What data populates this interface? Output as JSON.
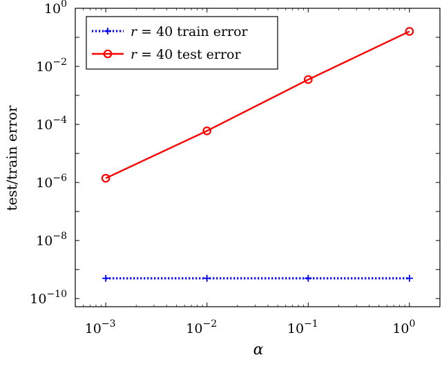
{
  "chart_data": {
    "type": "line",
    "xscale": "log",
    "yscale": "log",
    "xlabel": "α",
    "ylabel": "test/train error",
    "xlim": [
      0.0005,
      2
    ],
    "ylim": [
      1e-10,
      1
    ],
    "legend_position": "top-left",
    "grid": false,
    "x": [
      0.001,
      0.01,
      0.1,
      1
    ],
    "x_ticks": [
      {
        "value": 0.001,
        "base": "10",
        "exp": "−3"
      },
      {
        "value": 0.01,
        "base": "10",
        "exp": "−2"
      },
      {
        "value": 0.1,
        "base": "10",
        "exp": "−1"
      },
      {
        "value": 1,
        "base": "10",
        "exp": "0"
      }
    ],
    "y_ticks": [
      {
        "value": 1e-10,
        "base": "10",
        "exp": "−10"
      },
      {
        "value": 1e-08,
        "base": "10",
        "exp": "−8"
      },
      {
        "value": 1e-06,
        "base": "10",
        "exp": "−6"
      },
      {
        "value": 0.0001,
        "base": "10",
        "exp": "−4"
      },
      {
        "value": 0.01,
        "base": "10",
        "exp": "−2"
      },
      {
        "value": 1,
        "base": "10",
        "exp": "0"
      }
    ],
    "series": [
      {
        "name": "r = 40 train error",
        "name_var": "r",
        "name_rest": " = 40 train error",
        "color": "#0000ff",
        "style": "dotted",
        "marker": "plus",
        "values": [
          5e-10,
          5e-10,
          5e-10,
          5e-10
        ]
      },
      {
        "name": "r = 40 test error",
        "name_var": "r",
        "name_rest": " = 40 test error",
        "color": "#ff0000",
        "style": "solid",
        "marker": "circle",
        "values": [
          1.4e-06,
          6e-05,
          0.0035,
          0.16
        ]
      }
    ]
  }
}
